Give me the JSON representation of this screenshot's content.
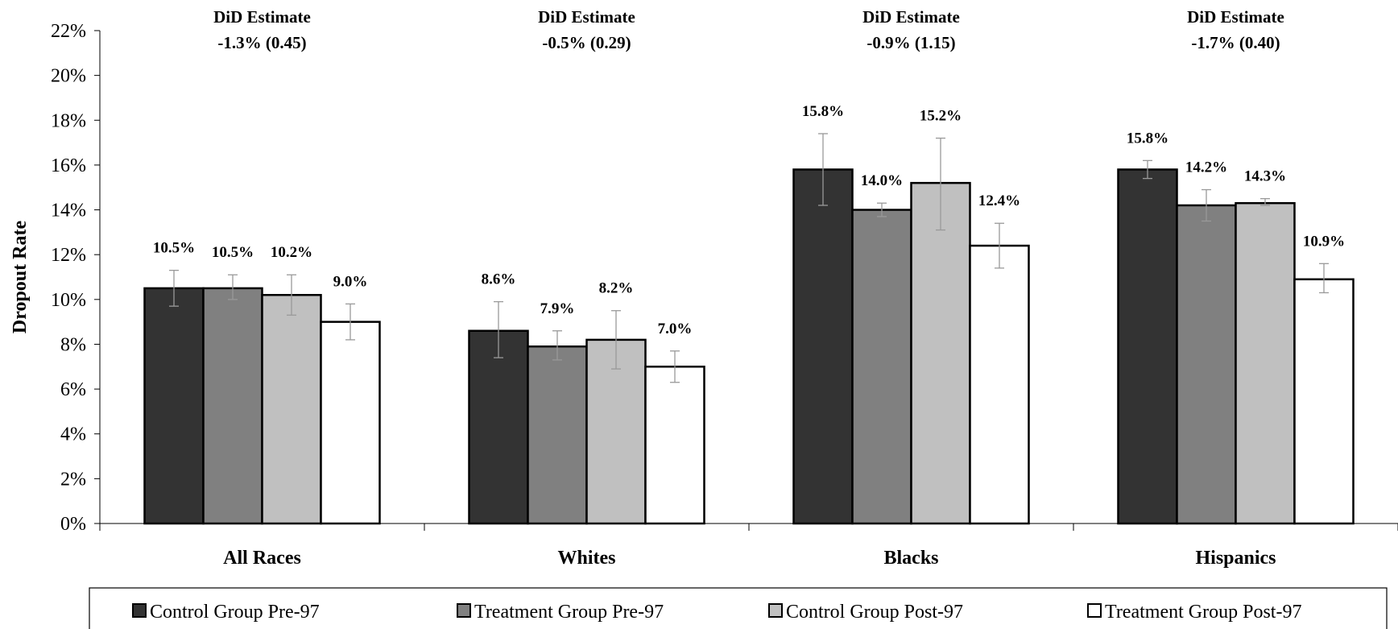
{
  "chart_data": {
    "type": "bar",
    "ylabel": "Dropout Rate",
    "ylim": [
      0,
      22
    ],
    "y_ticks": [
      "0%",
      "2%",
      "4%",
      "6%",
      "8%",
      "10%",
      "12%",
      "14%",
      "16%",
      "18%",
      "20%",
      "22%"
    ],
    "categories": [
      "All Races",
      "Whites",
      "Blacks",
      "Hispanics"
    ],
    "annotations": [
      {
        "title": "DiD Estimate",
        "value": "-1.3% (0.45)"
      },
      {
        "title": "DiD Estimate",
        "value": "-0.5% (0.29)"
      },
      {
        "title": "DiD Estimate",
        "value": "-0.9% (1.15)"
      },
      {
        "title": "DiD Estimate",
        "value": "-1.7% (0.40)"
      }
    ],
    "series": [
      {
        "name": "Control Group Pre-97",
        "color": "#333333",
        "values": [
          10.5,
          8.6,
          15.8,
          15.8
        ],
        "labels": [
          "10.5%",
          "8.6%",
          "15.8%",
          "15.8%"
        ],
        "err_low": [
          9.7,
          7.4,
          14.2,
          15.4
        ],
        "err_high": [
          11.3,
          9.9,
          17.4,
          16.2
        ]
      },
      {
        "name": "Treatment Group Pre-97",
        "color": "#808080",
        "values": [
          10.5,
          7.9,
          14.0,
          14.2
        ],
        "labels": [
          "10.5%",
          "7.9%",
          "14.0%",
          "14.2%"
        ],
        "err_low": [
          10.0,
          7.3,
          13.7,
          13.5
        ],
        "err_high": [
          11.1,
          8.6,
          14.3,
          14.9
        ]
      },
      {
        "name": "Control Group Post-97",
        "color": "#c0c0c0",
        "values": [
          10.2,
          8.2,
          15.2,
          14.3
        ],
        "labels": [
          "10.2%",
          "8.2%",
          "15.2%",
          "14.3%"
        ],
        "err_low": [
          9.3,
          6.9,
          13.1,
          14.2
        ],
        "err_high": [
          11.1,
          9.5,
          17.2,
          14.5
        ]
      },
      {
        "name": "Treatment Group Post-97",
        "color": "#ffffff",
        "values": [
          9.0,
          7.0,
          12.4,
          10.9
        ],
        "labels": [
          "9.0%",
          "7.0%",
          "12.4%",
          "10.9%"
        ],
        "err_low": [
          8.2,
          6.3,
          11.4,
          10.3
        ],
        "err_high": [
          9.8,
          7.7,
          13.4,
          11.6
        ]
      }
    ],
    "grid": false,
    "legend_position": "bottom"
  }
}
